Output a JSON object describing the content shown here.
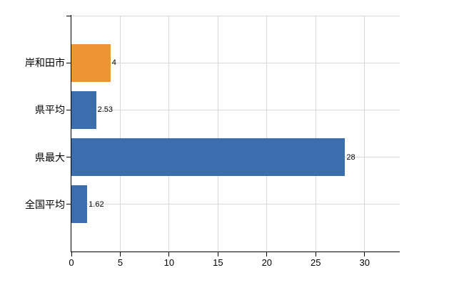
{
  "chart_data": {
    "type": "bar",
    "orientation": "horizontal",
    "title": "",
    "categories": [
      "岸和田市",
      "県平均",
      "県最大",
      "全国平均"
    ],
    "values": [
      4,
      2.53,
      28,
      1.62
    ],
    "value_labels": [
      "4",
      "2.53",
      "28",
      "1.62"
    ],
    "bar_colors": [
      "#EE9435",
      "#3C6EAD",
      "#3C6EAD",
      "#3C6EAD"
    ],
    "x_ticks": [
      0,
      5,
      10,
      15,
      20,
      25,
      30
    ],
    "x_tick_labels": [
      "0",
      "5",
      "10",
      "15",
      "20",
      "25",
      "30"
    ],
    "xlim": [
      0,
      33.6
    ],
    "grid": true,
    "legend": false,
    "colors": {
      "gridline": "#D9D9D9",
      "axis": "#000000",
      "text": "#000000",
      "background": "#FFFFFF"
    }
  }
}
